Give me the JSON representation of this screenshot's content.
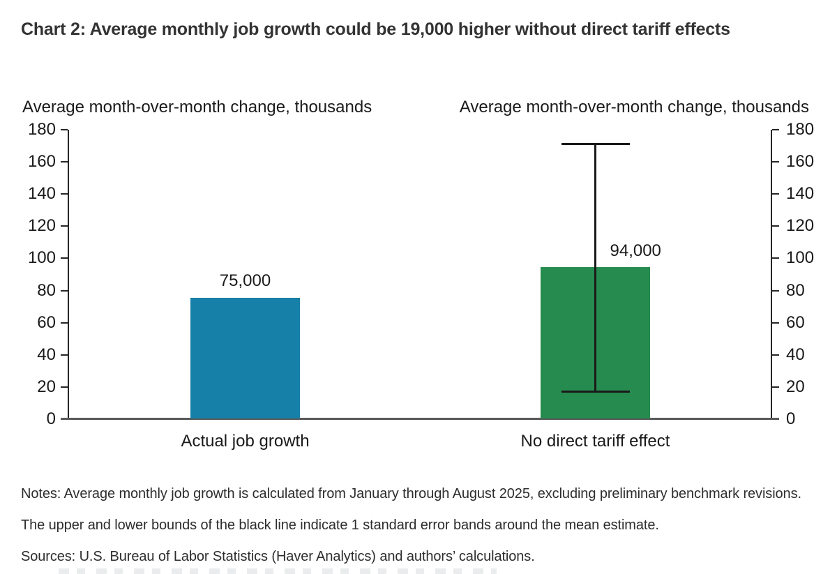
{
  "page": {
    "title": "Chart 2: Average monthly job growth could be 19,000 higher without direct tariff effects",
    "notes": "Notes: Average monthly job growth is calculated from January through August 2025, excluding preliminary benchmark revisions. The upper and lower bounds of the black line indicate 1 standard error bands around the mean estimate.",
    "sources": "Sources: U.S. Bureau of Labor Statistics (Haver Analytics) and authors’ calculations."
  },
  "chart_data": {
    "type": "bar",
    "title": "Chart 2: Average monthly job growth could be 19,000 higher without direct tariff effects",
    "axis_title_left": "Average month-over-month change, thousands",
    "axis_title_right": "Average month-over-month change, thousands",
    "categories": [
      "Actual job growth",
      "No direct tariff effect"
    ],
    "values": [
      75,
      94
    ],
    "value_labels": [
      "75,000",
      "94,000"
    ],
    "bar_colors": [
      "#1780A8",
      "#268B4E"
    ],
    "error_bar": {
      "category_index": 1,
      "center": 94,
      "low": 17,
      "high": 171,
      "meaning": "1 standard error bands around the mean estimate",
      "color": "#1a1a1a"
    },
    "ylim": [
      0,
      180
    ],
    "yticks": [
      180,
      160,
      140,
      120,
      100,
      80,
      60,
      40,
      20,
      0
    ],
    "dual_axis": true,
    "grid": false,
    "legend": "none",
    "baseline_color": "#595959",
    "axis_color": "#262626"
  }
}
